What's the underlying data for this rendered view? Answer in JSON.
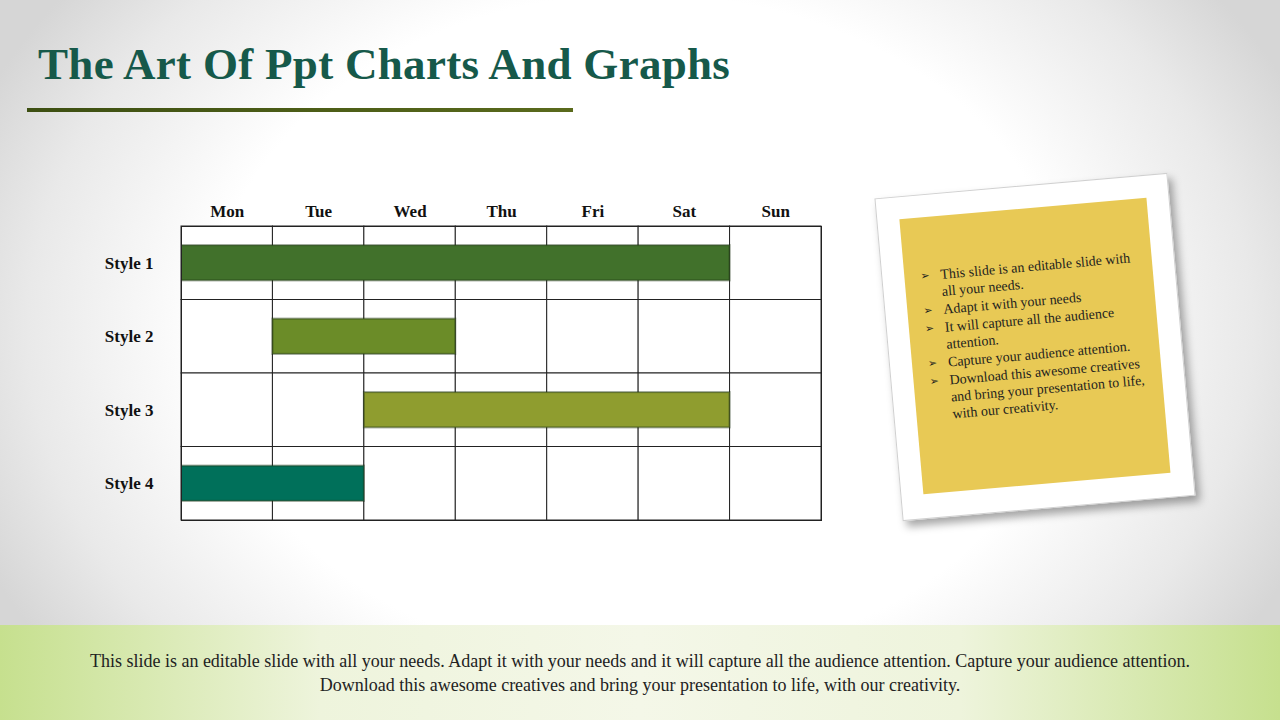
{
  "chart_data": {
    "type": "gantt",
    "title": "The Art Of Ppt Charts And Graphs",
    "categories": [
      "Mon",
      "Tue",
      "Wed",
      "Thu",
      "Fri",
      "Sat",
      "Sun"
    ],
    "series": [
      {
        "name": "Style 1",
        "color": "#41712b",
        "start": "Mon",
        "end": "Sat"
      },
      {
        "name": "Style 2",
        "color": "#6b8c28",
        "start": "Tue",
        "end": "Wed"
      },
      {
        "name": "Style 3",
        "color": "#8f9d2f",
        "start": "Wed",
        "end": "Sat"
      },
      {
        "name": "Style 4",
        "color": "#00705a",
        "start": "Mon",
        "end": "Tue"
      }
    ],
    "grid": true
  },
  "note": [
    "This slide is an editable slide with all your needs.",
    "Adapt it with your needs",
    "It will capture all the audience attention.",
    "Capture your audience attention.",
    "Download this awesome creatives and bring your presentation to life, with our creativity."
  ],
  "footer": "This slide is an editable slide with all your needs. Adapt it with your needs and it will capture all the audience attention. Capture your audience attention. Download this awesome creatives and bring your presentation to life, with our creativity."
}
